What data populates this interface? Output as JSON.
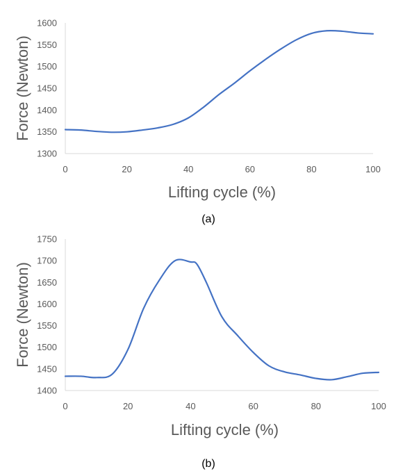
{
  "colors": {
    "series": "#4472c4",
    "axis": "#d9d9d9",
    "text": "#595959"
  },
  "chart_data": [
    {
      "type": "line",
      "caption": "(a)",
      "xlabel": "Lifting cycle (%)",
      "ylabel": "Force (Newton)",
      "xlim": [
        0,
        100
      ],
      "ylim": [
        1300,
        1600
      ],
      "xticks": [
        0,
        20,
        40,
        60,
        80,
        100
      ],
      "yticks": [
        1300,
        1350,
        1400,
        1450,
        1500,
        1550,
        1600
      ],
      "grid": false,
      "series": [
        {
          "x": [
            0,
            5,
            10,
            15,
            20,
            25,
            30,
            35,
            40,
            45,
            50,
            55,
            60,
            65,
            70,
            75,
            80,
            85,
            90,
            95,
            100
          ],
          "values": [
            1355,
            1354,
            1351,
            1349,
            1350,
            1354,
            1359,
            1367,
            1382,
            1407,
            1436,
            1462,
            1490,
            1516,
            1540,
            1561,
            1576,
            1582,
            1581,
            1577,
            1575
          ]
        }
      ]
    },
    {
      "type": "line",
      "caption": "(b)",
      "xlabel": "Lifting cycle (%)",
      "ylabel": "Force (Newton)",
      "xlim": [
        0,
        100
      ],
      "ylim": [
        1400,
        1750
      ],
      "xticks": [
        0,
        20,
        40,
        60,
        80,
        100
      ],
      "yticks": [
        1400,
        1450,
        1500,
        1550,
        1600,
        1650,
        1700,
        1750
      ],
      "grid": false,
      "series": [
        {
          "x": [
            0,
            5,
            10,
            15,
            20,
            25,
            30,
            35,
            40,
            42,
            45,
            50,
            55,
            60,
            65,
            70,
            75,
            80,
            85,
            90,
            95,
            100
          ],
          "values": [
            1433,
            1433,
            1430,
            1438,
            1495,
            1590,
            1655,
            1700,
            1697,
            1692,
            1650,
            1570,
            1527,
            1488,
            1457,
            1443,
            1436,
            1428,
            1425,
            1432,
            1440,
            1442
          ]
        }
      ]
    }
  ]
}
